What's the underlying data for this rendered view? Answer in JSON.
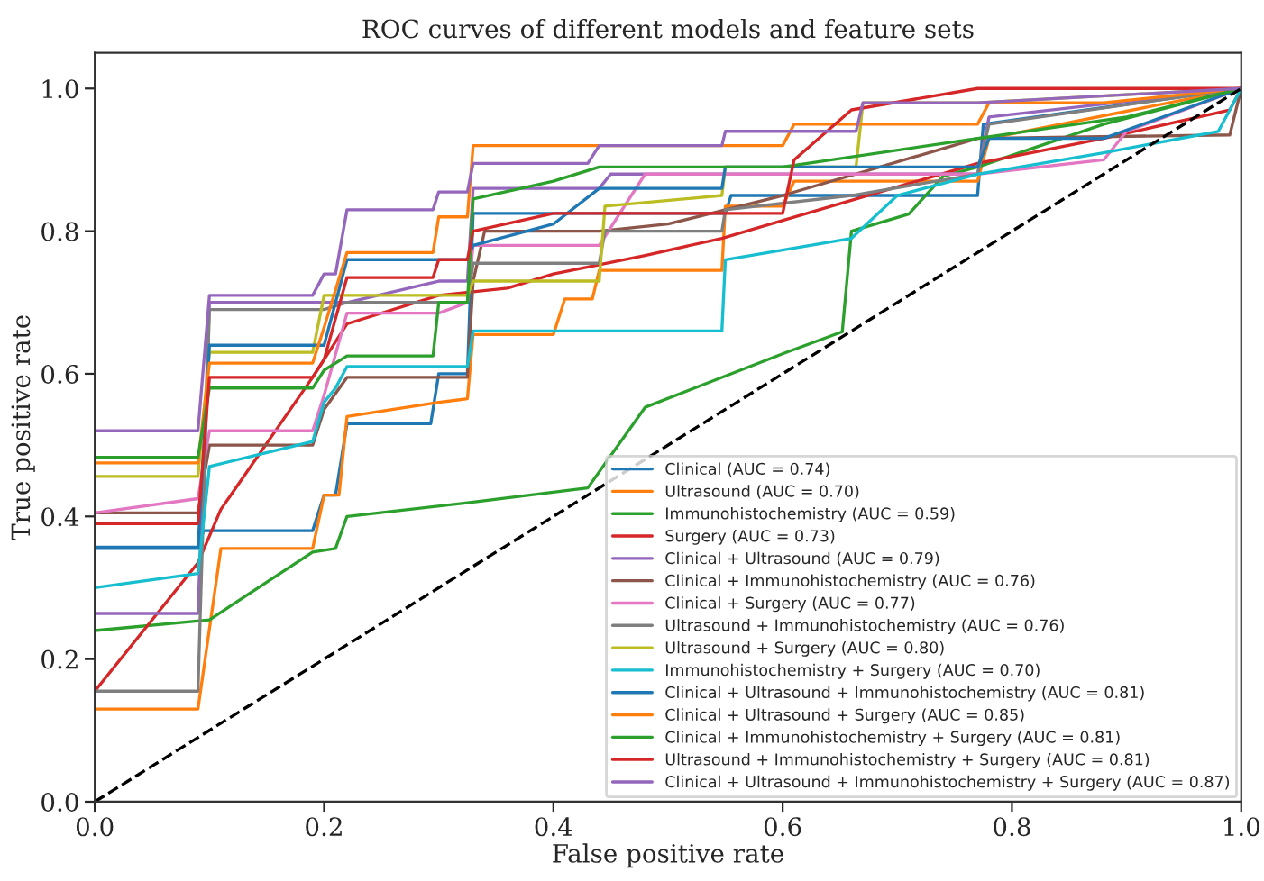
{
  "chart_data": {
    "type": "line",
    "title": "ROC curves of different models and feature sets",
    "xlabel": "False positive rate",
    "ylabel": "True positive rate",
    "xlim": [
      0,
      1
    ],
    "ylim": [
      0,
      1.05
    ],
    "xticks": [
      {
        "value": 0,
        "label": "0.0"
      },
      {
        "value": 0.2,
        "label": "0.2"
      },
      {
        "value": 0.4,
        "label": "0.4"
      },
      {
        "value": 0.6,
        "label": "0.6"
      },
      {
        "value": 0.8,
        "label": "0.8"
      },
      {
        "value": 1,
        "label": "1.0"
      }
    ],
    "yticks": [
      {
        "value": 0,
        "label": "0.0"
      },
      {
        "value": 0.2,
        "label": "0.2"
      },
      {
        "value": 0.4,
        "label": "0.4"
      },
      {
        "value": 0.6,
        "label": "0.6"
      },
      {
        "value": 0.8,
        "label": "0.8"
      },
      {
        "value": 1,
        "label": "1.0"
      }
    ],
    "grid": false,
    "legend": "bottom right",
    "marker": "none",
    "series": [
      {
        "name": "Clinical (AUC = 0.74)",
        "color": "#1f77b4",
        "x": [
          0,
          0.09,
          0.095,
          0.19,
          0.2,
          0.21,
          0.22,
          0.293,
          0.3,
          0.325,
          0.33,
          0.55,
          0.555,
          0.77,
          0.775,
          1
        ],
        "values": [
          0.357,
          0.357,
          0.38,
          0.38,
          0.43,
          0.43,
          0.53,
          0.53,
          0.6,
          0.6,
          0.825,
          0.825,
          0.85,
          0.85,
          0.95,
          1
        ]
      },
      {
        "name": "Ultrasound (AUC = 0.70)",
        "color": "#ff7f0e",
        "x": [
          0,
          0.09,
          0.11,
          0.19,
          0.2,
          0.213,
          0.22,
          0.3,
          0.325,
          0.33,
          0.4,
          0.41,
          0.434,
          0.44,
          0.547,
          0.55,
          0.6,
          0.61,
          0.77,
          0.78,
          1
        ],
        "values": [
          0.13,
          0.13,
          0.355,
          0.355,
          0.43,
          0.43,
          0.54,
          0.56,
          0.565,
          0.655,
          0.655,
          0.705,
          0.705,
          0.745,
          0.745,
          0.835,
          0.835,
          0.87,
          0.87,
          0.93,
          1
        ]
      },
      {
        "name": "Immunohistochemistry (AUC = 0.59)",
        "color": "#2ca02c",
        "x": [
          0,
          0.1,
          0.19,
          0.21,
          0.22,
          0.33,
          0.43,
          0.48,
          0.603,
          0.652,
          0.66,
          0.71,
          0.74,
          0.77,
          0.88,
          1
        ],
        "values": [
          0.24,
          0.255,
          0.35,
          0.355,
          0.4,
          0.42,
          0.44,
          0.553,
          0.63,
          0.659,
          0.8,
          0.824,
          0.877,
          0.89,
          0.95,
          1
        ]
      },
      {
        "name": "Surgery (AUC = 0.73)",
        "color": "#d62728",
        "x": [
          0,
          0.09,
          0.11,
          0.19,
          0.2,
          0.22,
          0.3,
          0.36,
          0.4,
          0.48,
          0.547,
          0.77,
          0.88,
          0.99,
          1
        ],
        "values": [
          0.155,
          0.335,
          0.41,
          0.595,
          0.62,
          0.67,
          0.71,
          0.72,
          0.74,
          0.766,
          0.79,
          0.895,
          0.93,
          0.97,
          1
        ]
      },
      {
        "name": "Clinical + Ultrasound (AUC = 0.79)",
        "color": "#9467bd",
        "x": [
          0,
          0.09,
          0.1,
          0.22,
          0.3,
          0.325,
          0.33,
          0.44,
          0.45,
          0.77,
          0.78,
          1
        ],
        "values": [
          0.264,
          0.264,
          0.7,
          0.7,
          0.73,
          0.73,
          0.86,
          0.86,
          0.88,
          0.88,
          0.96,
          1
        ]
      },
      {
        "name": "Clinical + Immunohistochemistry (AUC = 0.76)",
        "color": "#8c564b",
        "x": [
          0,
          0.09,
          0.1,
          0.19,
          0.2,
          0.22,
          0.325,
          0.33,
          0.34,
          0.44,
          0.5,
          0.6,
          0.77,
          0.99,
          1
        ],
        "values": [
          0.405,
          0.405,
          0.5,
          0.5,
          0.55,
          0.595,
          0.595,
          0.73,
          0.8,
          0.8,
          0.81,
          0.85,
          0.93,
          0.935,
          1
        ]
      },
      {
        "name": "Clinical + Surgery (AUC = 0.77)",
        "color": "#e377c2",
        "x": [
          0,
          0.09,
          0.1,
          0.19,
          0.2,
          0.22,
          0.3,
          0.325,
          0.33,
          0.44,
          0.48,
          0.77,
          0.88,
          0.9,
          1
        ],
        "values": [
          0.405,
          0.425,
          0.52,
          0.52,
          0.57,
          0.685,
          0.685,
          0.7,
          0.78,
          0.78,
          0.88,
          0.88,
          0.9,
          0.94,
          1
        ]
      },
      {
        "name": "Ultrasound + Immunohistochemistry (AUC = 0.76)",
        "color": "#7f7f7f",
        "x": [
          0,
          0.09,
          0.1,
          0.2,
          0.22,
          0.325,
          0.33,
          0.44,
          0.445,
          0.547,
          0.55,
          0.66,
          0.77,
          0.78,
          1
        ],
        "values": [
          0.155,
          0.155,
          0.69,
          0.69,
          0.7,
          0.7,
          0.755,
          0.755,
          0.8,
          0.8,
          0.83,
          0.85,
          0.88,
          0.95,
          1
        ]
      },
      {
        "name": "Ultrasound + Surgery (AUC = 0.80)",
        "color": "#bcbd22",
        "x": [
          0,
          0.09,
          0.1,
          0.19,
          0.2,
          0.325,
          0.33,
          0.44,
          0.445,
          0.547,
          0.55,
          0.664,
          0.67,
          0.77,
          1
        ],
        "values": [
          0.456,
          0.456,
          0.63,
          0.63,
          0.71,
          0.71,
          0.73,
          0.73,
          0.835,
          0.85,
          0.89,
          0.89,
          0.98,
          0.98,
          1
        ]
      },
      {
        "name": "Immunohistochemistry + Surgery (AUC = 0.70)",
        "color": "#17becf",
        "x": [
          0,
          0.09,
          0.1,
          0.19,
          0.2,
          0.21,
          0.22,
          0.325,
          0.33,
          0.547,
          0.55,
          0.66,
          0.7,
          0.77,
          0.88,
          0.98,
          1
        ],
        "values": [
          0.3,
          0.32,
          0.47,
          0.505,
          0.56,
          0.58,
          0.61,
          0.61,
          0.66,
          0.66,
          0.76,
          0.79,
          0.85,
          0.88,
          0.91,
          0.94,
          1
        ]
      },
      {
        "name": "Clinical + Ultrasound + Immunohistochemistry (AUC = 0.81)",
        "color": "#1f77b4",
        "x": [
          0,
          0.09,
          0.1,
          0.2,
          0.22,
          0.325,
          0.33,
          0.4,
          0.44,
          0.547,
          0.55,
          0.77,
          0.78,
          0.88,
          1
        ],
        "values": [
          0.355,
          0.355,
          0.64,
          0.64,
          0.76,
          0.76,
          0.78,
          0.81,
          0.86,
          0.86,
          0.89,
          0.89,
          0.93,
          0.93,
          1
        ]
      },
      {
        "name": "Clinical + Ultrasound + Surgery (AUC = 0.85)",
        "color": "#ff7f0e",
        "x": [
          0,
          0.09,
          0.1,
          0.19,
          0.2,
          0.22,
          0.295,
          0.3,
          0.325,
          0.33,
          0.6,
          0.61,
          0.77,
          0.78,
          0.88,
          1
        ],
        "values": [
          0.475,
          0.475,
          0.615,
          0.615,
          0.665,
          0.77,
          0.77,
          0.82,
          0.82,
          0.92,
          0.92,
          0.95,
          0.95,
          0.98,
          0.98,
          1
        ]
      },
      {
        "name": "Clinical + Immunohistochemistry + Surgery (AUC = 0.81)",
        "color": "#2ca02c",
        "x": [
          0,
          0.09,
          0.1,
          0.19,
          0.2,
          0.22,
          0.295,
          0.3,
          0.325,
          0.33,
          0.4,
          0.44,
          0.6,
          0.77,
          0.9,
          1
        ],
        "values": [
          0.483,
          0.483,
          0.58,
          0.58,
          0.605,
          0.625,
          0.625,
          0.7,
          0.7,
          0.845,
          0.87,
          0.89,
          0.89,
          0.93,
          0.96,
          1
        ]
      },
      {
        "name": "Ultrasound + Immunohistochemistry + Surgery (AUC = 0.81)",
        "color": "#d62728",
        "x": [
          0,
          0.09,
          0.1,
          0.19,
          0.2,
          0.22,
          0.295,
          0.3,
          0.325,
          0.33,
          0.4,
          0.6,
          0.61,
          0.66,
          0.77,
          1
        ],
        "values": [
          0.39,
          0.39,
          0.595,
          0.595,
          0.62,
          0.735,
          0.735,
          0.76,
          0.76,
          0.8,
          0.825,
          0.825,
          0.9,
          0.97,
          1,
          1
        ]
      },
      {
        "name": "Clinical + Ultrasound + Immunohistochemistry + Surgery (AUC = 0.87)",
        "color": "#9467bd",
        "x": [
          0,
          0.09,
          0.1,
          0.19,
          0.2,
          0.21,
          0.22,
          0.295,
          0.3,
          0.325,
          0.33,
          0.43,
          0.44,
          0.547,
          0.55,
          0.664,
          0.67,
          0.77,
          1
        ],
        "values": [
          0.52,
          0.52,
          0.71,
          0.71,
          0.74,
          0.74,
          0.83,
          0.83,
          0.855,
          0.855,
          0.895,
          0.895,
          0.92,
          0.92,
          0.94,
          0.94,
          0.98,
          0.98,
          1
        ]
      },
      {
        "color": "#000000",
        "line_style": "dashed",
        "x": [
          0,
          1
        ],
        "values": [
          0,
          1
        ]
      }
    ]
  }
}
